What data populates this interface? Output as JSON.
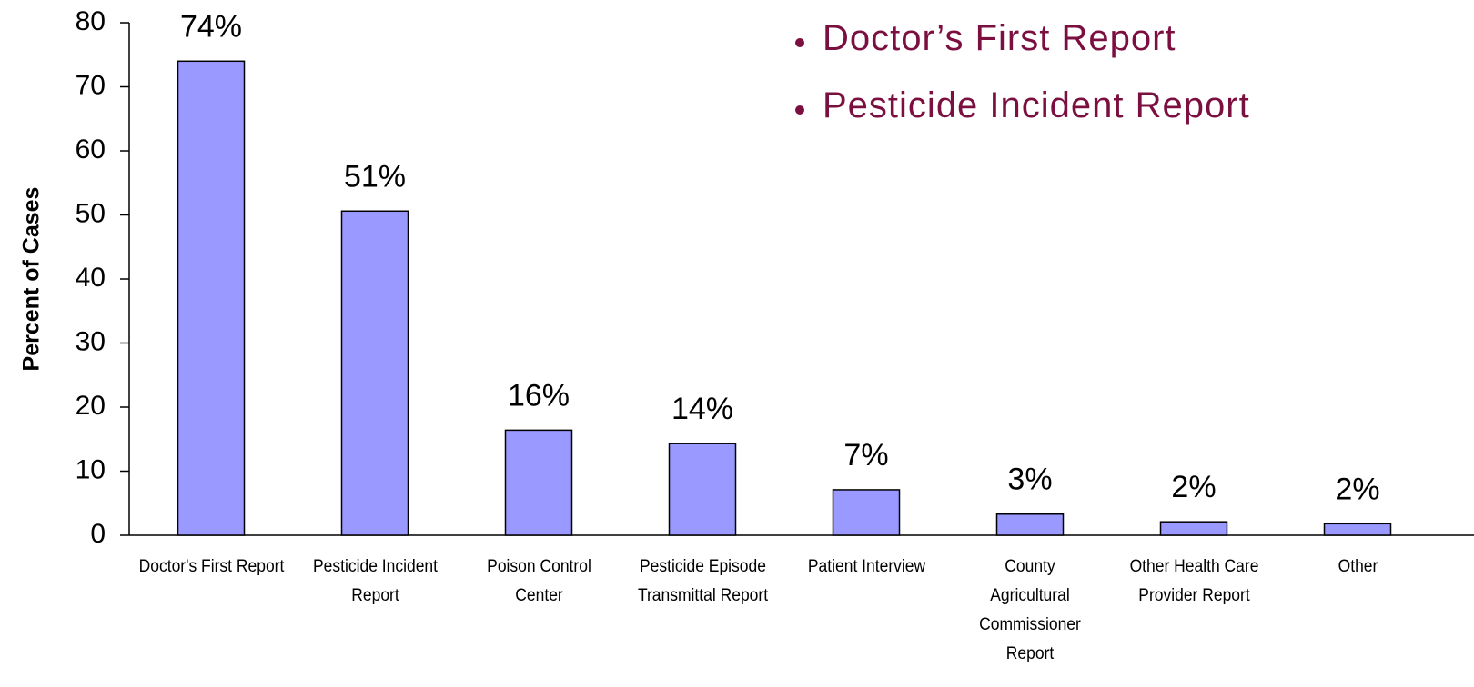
{
  "chart_data": {
    "type": "bar",
    "y_label": "Percent of Cases",
    "categories": [
      "Doctor's First Report",
      "Pesticide Incident  Report",
      "Poison Control Center",
      "Pesticide Episode Transmittal Report",
      "Patient Interview",
      "County Agricultural Commissioner Report",
      "Other Health Care Provider Report",
      "Other"
    ],
    "values": [
      74,
      50.6,
      16.4,
      14.3,
      7.1,
      3.3,
      2.1,
      1.8
    ],
    "value_labels": [
      "74%",
      "51%",
      "16%",
      "14%",
      "7%",
      "3%",
      "2%",
      "2%"
    ],
    "color": "#9999ff",
    "ylim": [
      0,
      80
    ],
    "yticks": [
      0,
      10,
      20,
      30,
      40,
      50,
      60,
      70,
      80
    ],
    "grid": false,
    "annotations": [
      "Doctor’s First Report",
      "Pesticide Incident Report"
    ],
    "annotation_color": "#7b1040"
  }
}
